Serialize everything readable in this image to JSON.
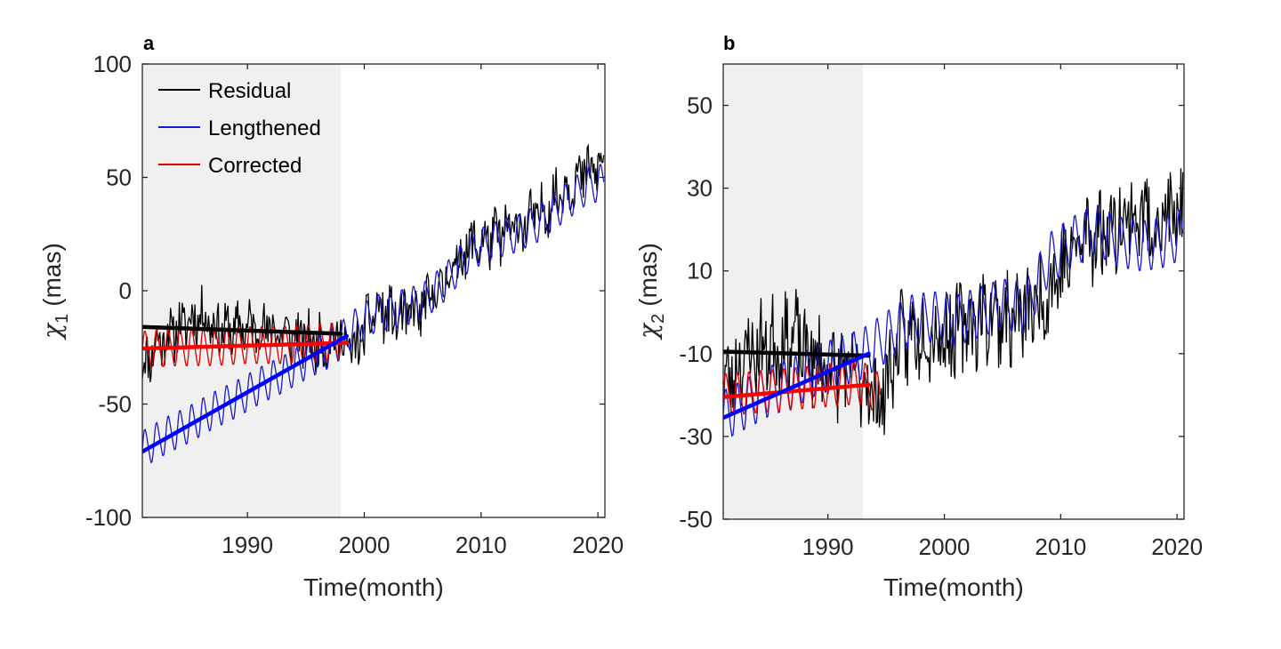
{
  "chart_data": [
    {
      "type": "line",
      "panel_label": "a",
      "xlabel": "Time(month)",
      "ylabel_symbol": "χ",
      "ylabel_subscript": "1",
      "ylabel_unit": "(mas)",
      "xlim": [
        1981.0,
        2020.6
      ],
      "ylim": [
        -100,
        100
      ],
      "xticks": [
        1990,
        2000,
        2010,
        2020
      ],
      "yticks": [
        -100,
        -50,
        0,
        50,
        100
      ],
      "shaded_interval": [
        1981.0,
        1998.0
      ],
      "legend": {
        "placement": "top-left",
        "entries": [
          "Residual",
          "Lengthened",
          "Corrected"
        ]
      },
      "series": [
        {
          "name": "Residual",
          "color": "#000000",
          "points": [
            [
              1981.0,
              -33
            ],
            [
              1982.5,
              -22
            ],
            [
              1984,
              -17
            ],
            [
              1986,
              -10
            ],
            [
              1988,
              -18
            ],
            [
              1990,
              -16
            ],
            [
              1992,
              -17
            ],
            [
              1994,
              -20
            ],
            [
              1996,
              -24
            ],
            [
              1998,
              -20
            ],
            [
              1999,
              -28
            ],
            [
              2001,
              -8
            ],
            [
              2003,
              -13
            ],
            [
              2005,
              -8
            ],
            [
              2007,
              5
            ],
            [
              2009,
              20
            ],
            [
              2011,
              23
            ],
            [
              2013,
              28
            ],
            [
              2015,
              33
            ],
            [
              2017,
              45
            ],
            [
              2019,
              52
            ],
            [
              2020.5,
              55
            ]
          ]
        },
        {
          "name": "Lengthened",
          "color": "#1a1acc",
          "points": [
            [
              1981.0,
              -70
            ],
            [
              1983,
              -64
            ],
            [
              1985,
              -59
            ],
            [
              1987,
              -53
            ],
            [
              1989,
              -48
            ],
            [
              1991,
              -42
            ],
            [
              1993,
              -37
            ],
            [
              1995,
              -31
            ],
            [
              1997,
              -26
            ],
            [
              1998,
              -22
            ],
            [
              1999,
              -17
            ],
            [
              2001,
              -10
            ],
            [
              2003,
              -8
            ],
            [
              2005,
              -5
            ],
            [
              2007,
              4
            ],
            [
              2009,
              17
            ],
            [
              2011,
              22
            ],
            [
              2013,
              25
            ],
            [
              2015,
              30
            ],
            [
              2017,
              38
            ],
            [
              2019,
              46
            ],
            [
              2020.5,
              48
            ]
          ]
        },
        {
          "name": "Corrected",
          "color": "#e00000",
          "points": [
            [
              1981.0,
              -26
            ],
            [
              1984,
              -25
            ],
            [
              1987,
              -25
            ],
            [
              1990,
              -24
            ],
            [
              1993,
              -24
            ],
            [
              1996,
              -23
            ],
            [
              1998,
              -22
            ]
          ]
        }
      ],
      "trend_lines": [
        {
          "series": "Residual",
          "color": "#000000",
          "x": [
            1981.0,
            1998.0
          ],
          "y": [
            -16,
            -19
          ]
        },
        {
          "series": "Corrected",
          "color": "#ff0000",
          "x": [
            1981.0,
            1998.5
          ],
          "y": [
            -25.5,
            -23
          ]
        },
        {
          "series": "Lengthened",
          "color": "#0000ff",
          "x": [
            1981.0,
            1998.5
          ],
          "y": [
            -71,
            -20
          ]
        }
      ]
    },
    {
      "type": "line",
      "panel_label": "b",
      "xlabel": "Time(month)",
      "ylabel_symbol": "χ",
      "ylabel_subscript": "2",
      "ylabel_unit": "(mas)",
      "xlim": [
        1981.0,
        2020.6
      ],
      "ylim": [
        -50,
        60
      ],
      "xticks": [
        1990,
        2000,
        2010,
        2020
      ],
      "yticks": [
        -50,
        -30,
        -10,
        10,
        30,
        50
      ],
      "shaded_interval": [
        1981.0,
        1993.0
      ],
      "series": [
        {
          "name": "Residual",
          "color": "#000000",
          "points": [
            [
              1981.0,
              -18
            ],
            [
              1983,
              -10
            ],
            [
              1985,
              -8
            ],
            [
              1987,
              -6
            ],
            [
              1989,
              -12
            ],
            [
              1991,
              -14
            ],
            [
              1993,
              -16
            ],
            [
              1994.5,
              -22
            ],
            [
              1996,
              -8
            ],
            [
              1998,
              -4
            ],
            [
              2000,
              -6
            ],
            [
              2002,
              -3
            ],
            [
              2004,
              0
            ],
            [
              2006,
              -2
            ],
            [
              2008,
              2
            ],
            [
              2010,
              10
            ],
            [
              2012,
              18
            ],
            [
              2014,
              20
            ],
            [
              2016,
              24
            ],
            [
              2018,
              22
            ],
            [
              2020.5,
              24
            ]
          ]
        },
        {
          "name": "Lengthened",
          "color": "#1a1acc",
          "points": [
            [
              1981.0,
              -25
            ],
            [
              1983,
              -22
            ],
            [
              1985,
              -19
            ],
            [
              1987,
              -17
            ],
            [
              1989,
              -14
            ],
            [
              1991,
              -12
            ],
            [
              1993,
              -10
            ],
            [
              1995,
              -6
            ],
            [
              1997,
              -2
            ],
            [
              1999,
              -1
            ],
            [
              2001,
              -2
            ],
            [
              2003,
              0
            ],
            [
              2005,
              2
            ],
            [
              2007,
              1
            ],
            [
              2009,
              13
            ],
            [
              2011,
              17
            ],
            [
              2013,
              20
            ],
            [
              2015,
              17
            ],
            [
              2017,
              16
            ],
            [
              2019,
              17
            ],
            [
              2020.5,
              19
            ]
          ]
        },
        {
          "name": "Corrected",
          "color": "#e00000",
          "points": [
            [
              1981.0,
              -20
            ],
            [
              1983,
              -19.5
            ],
            [
              1985,
              -19
            ],
            [
              1987,
              -18.5
            ],
            [
              1989,
              -18
            ],
            [
              1991,
              -17.5
            ],
            [
              1993,
              -17
            ],
            [
              1994.5,
              -20
            ]
          ]
        }
      ],
      "trend_lines": [
        {
          "series": "Residual",
          "color": "#000000",
          "x": [
            1981.0,
            1993.5
          ],
          "y": [
            -9.5,
            -10.5
          ]
        },
        {
          "series": "Corrected",
          "color": "#ff0000",
          "x": [
            1981.0,
            1993.5
          ],
          "y": [
            -20.5,
            -17.5
          ]
        },
        {
          "series": "Lengthened",
          "color": "#0000ff",
          "x": [
            1981.0,
            1993.5
          ],
          "y": [
            -25.5,
            -10
          ]
        }
      ]
    }
  ]
}
